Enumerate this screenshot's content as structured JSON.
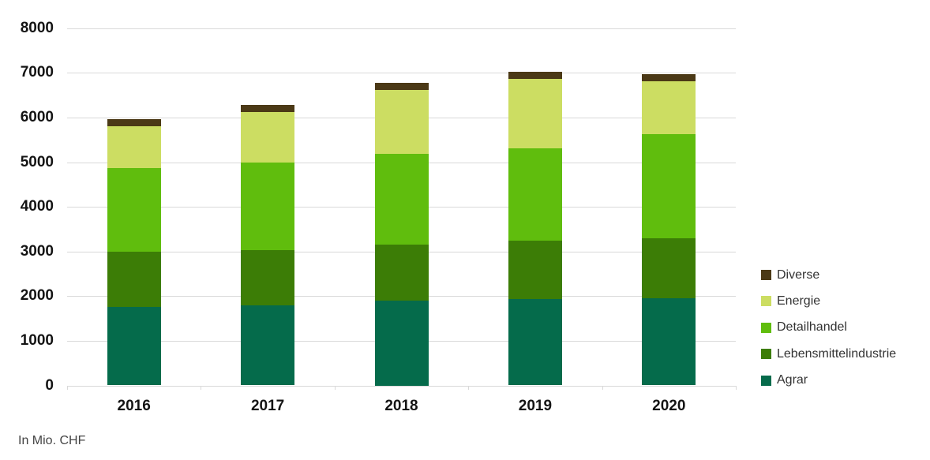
{
  "chart_data": {
    "type": "bar",
    "subtype": "stacked-vertical",
    "title": "",
    "xlabel": "",
    "ylabel": "",
    "unit_note": "In Mio. CHF",
    "categories": [
      "2016",
      "2017",
      "2018",
      "2019",
      "2020"
    ],
    "series": [
      {
        "name": "Agrar",
        "color": "#056b4b",
        "values": [
          1750,
          1790,
          1900,
          1940,
          1960
        ]
      },
      {
        "name": "Lebensmittelindustrie",
        "color": "#3c7d06",
        "values": [
          1250,
          1240,
          1260,
          1310,
          1330
        ]
      },
      {
        "name": "Detailhandel",
        "color": "#60bd0d",
        "values": [
          1870,
          1960,
          2020,
          2060,
          2330
        ]
      },
      {
        "name": "Energie",
        "color": "#ccdd62",
        "values": [
          940,
          1140,
          1440,
          1550,
          1190
        ]
      },
      {
        "name": "Diverse",
        "color": "#4b3916",
        "values": [
          160,
          160,
          150,
          160,
          160
        ]
      }
    ],
    "totals": [
      5970,
      6290,
      6770,
      7020,
      6970
    ],
    "y_axis": {
      "min": 0,
      "max": 8000,
      "step": 1000,
      "tick_labels": [
        "0",
        "1000",
        "2000",
        "3000",
        "4000",
        "5000",
        "6000",
        "7000",
        "8000"
      ]
    },
    "legend": {
      "position": "right",
      "order_top_to_bottom": [
        "Diverse",
        "Energie",
        "Detailhandel",
        "Lebensmittelindustrie",
        "Agrar"
      ]
    },
    "grid": {
      "horizontal": true,
      "vertical": false,
      "color": "#d9d9d9"
    }
  },
  "footer": {
    "note": "In Mio. CHF"
  }
}
